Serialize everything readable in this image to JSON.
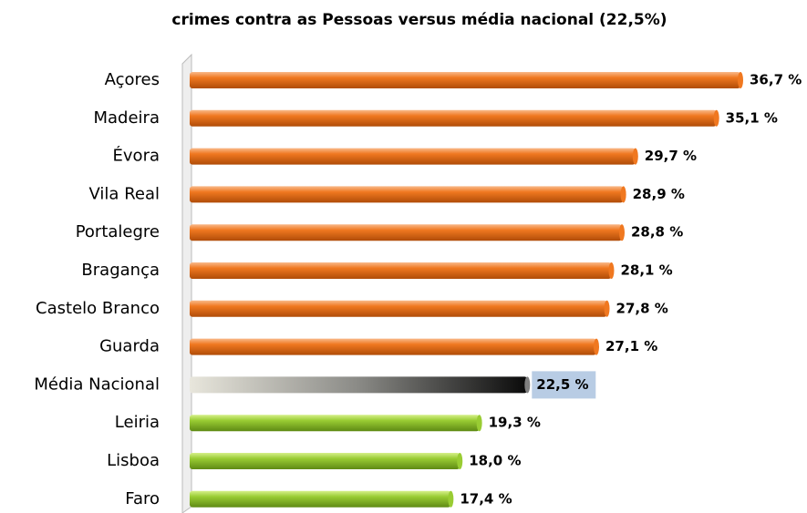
{
  "chart_data": {
    "type": "bar",
    "orientation": "horizontal",
    "title": "crimes contra as Pessoas versus média nacional  (22,5%)",
    "categories": [
      "Açores",
      "Madeira",
      "Évora",
      "Vila Real",
      "Portalegre",
      "Bragança",
      "Castelo Branco",
      "Guarda",
      "Média Nacional",
      "Leiria",
      "Lisboa",
      "Faro"
    ],
    "values": [
      36.7,
      35.1,
      29.7,
      28.9,
      28.8,
      28.1,
      27.8,
      27.1,
      22.5,
      19.3,
      18.0,
      17.4
    ],
    "value_labels": [
      "36,7 %",
      "35,1 %",
      "29,7 %",
      "28,9 %",
      "28,8 %",
      "28,1 %",
      "27,8 %",
      "27,1 %",
      "22,5 %",
      "19,3 %",
      "18,0 %",
      "17,4 %"
    ],
    "colors": [
      "#f07820",
      "#f07820",
      "#f07820",
      "#f07820",
      "#f07820",
      "#f07820",
      "#f07820",
      "#f07820",
      "#808080",
      "#99cc33",
      "#99cc33",
      "#99cc33"
    ],
    "label_backgrounds": [
      null,
      null,
      null,
      null,
      null,
      null,
      null,
      null,
      "#b8cce4",
      null,
      null,
      null
    ]
  }
}
